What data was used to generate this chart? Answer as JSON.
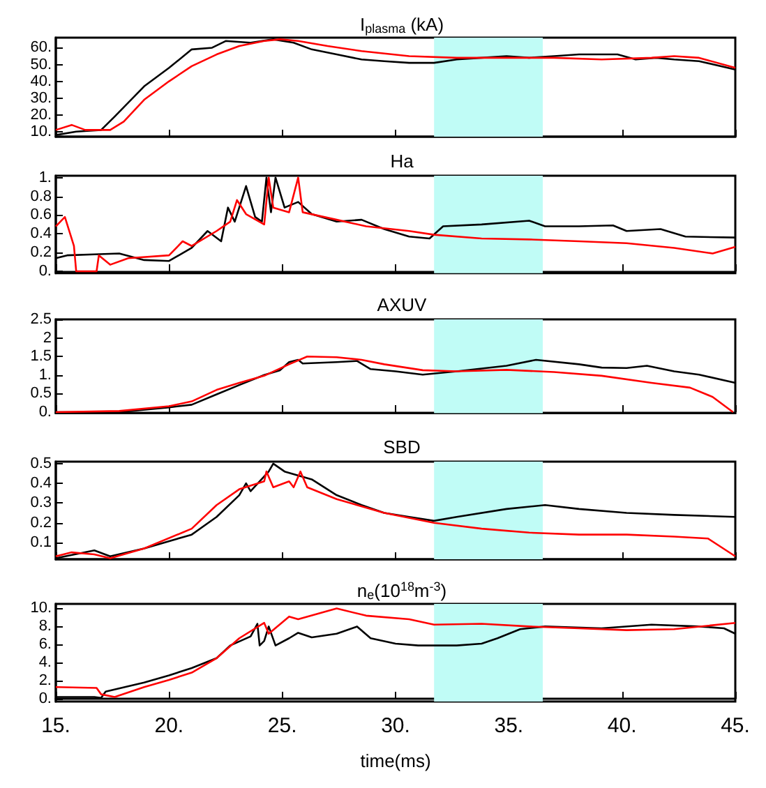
{
  "chart_data": [
    {
      "type": "line",
      "title": "I$_{plasma}$ (kA)",
      "marker": "none",
      "tick_labels": "y",
      "xlim": [
        15,
        45
      ],
      "xticks": [
        15,
        20,
        25,
        30,
        35,
        40,
        45
      ],
      "ylim": [
        7,
        66
      ],
      "yticks": [
        {
          "value": 10,
          "label": "10."
        },
        {
          "value": 20,
          "label": "20."
        },
        {
          "value": 30,
          "label": "30."
        },
        {
          "value": 40,
          "label": "40."
        },
        {
          "value": 50,
          "label": "50."
        },
        {
          "value": 60,
          "label": "60."
        }
      ],
      "bands": [
        {
          "axis": "x",
          "from": 31.7,
          "to": 36.5,
          "color": "#c0fcf6"
        }
      ],
      "series": [
        {
          "color": "#000000",
          "x": [
            15,
            15.9,
            17,
            17.6,
            18.9,
            20,
            21,
            21.9,
            22.5,
            23.6,
            24.6,
            25.5,
            26.3,
            27.4,
            28.5,
            29.5,
            30.6,
            31.7,
            32.7,
            33.8,
            34.9,
            35.9,
            37,
            38.1,
            39.1,
            39.8,
            40.6,
            41.5,
            42.3,
            43.4,
            45
          ],
          "values": [
            8,
            10,
            11,
            19,
            37,
            48,
            59,
            60,
            64,
            63,
            65,
            63,
            59,
            56,
            53,
            52,
            51,
            51,
            53,
            54,
            55,
            54,
            55,
            56,
            56,
            56,
            53,
            54,
            53,
            52,
            47
          ]
        },
        {
          "color": "#ff0000",
          "x": [
            15,
            15.7,
            16.3,
            17.4,
            18,
            18.9,
            20,
            21,
            22.1,
            23.1,
            24.2,
            24.9,
            25.7,
            27,
            28.5,
            30.6,
            32.7,
            34.9,
            37,
            39.1,
            41.3,
            42.3,
            43.4,
            45
          ],
          "values": [
            11,
            14,
            11,
            11,
            16,
            29,
            40,
            49,
            56,
            61,
            64,
            65,
            64,
            61,
            58,
            55,
            54,
            54,
            54,
            53,
            54,
            55,
            54,
            48
          ]
        }
      ]
    },
    {
      "type": "line",
      "title": "Ha",
      "marker": "none",
      "tick_labels": "y",
      "xlim": [
        15,
        45
      ],
      "xticks": [
        15,
        20,
        25,
        30,
        35,
        40,
        45
      ],
      "ylim": [
        -0.02,
        1.02
      ],
      "yticks": [
        {
          "value": 0,
          "label": "0."
        },
        0.2,
        0.4,
        0.6,
        0.8,
        {
          "value": 1,
          "label": "1."
        }
      ],
      "bands": [
        {
          "axis": "x",
          "from": 31.7,
          "to": 36.5,
          "color": "#c0fcf6"
        }
      ],
      "series": [
        {
          "color": "#000000",
          "x": [
            15,
            15.5,
            16.7,
            17.8,
            18.9,
            20,
            21,
            21.7,
            22.3,
            22.6,
            22.9,
            23.4,
            23.8,
            24.1,
            24.3,
            24.5,
            24.7,
            25.1,
            25.7,
            26.3,
            27.4,
            28.5,
            29.5,
            30.6,
            31.5,
            32.1,
            33.8,
            35.9,
            36.6,
            38.1,
            39.6,
            40.2,
            41.7,
            42.8,
            45
          ],
          "values": [
            0.14,
            0.17,
            0.18,
            0.19,
            0.12,
            0.11,
            0.25,
            0.43,
            0.32,
            0.68,
            0.53,
            0.91,
            0.58,
            0.53,
            1.0,
            0.63,
            1.0,
            0.68,
            0.74,
            0.61,
            0.53,
            0.55,
            0.45,
            0.37,
            0.35,
            0.48,
            0.5,
            0.54,
            0.48,
            0.48,
            0.49,
            0.43,
            0.45,
            0.37,
            0.36
          ]
        },
        {
          "color": "#ff0000",
          "x": [
            15,
            15.4,
            15.8,
            15.9,
            16.8,
            16.9,
            17.4,
            18.2,
            20,
            20.6,
            21,
            22.1,
            22.7,
            23,
            23.4,
            24.2,
            24.4,
            24.6,
            25.3,
            25.7,
            25.9,
            27.4,
            28.7,
            30.6,
            31.7,
            33.8,
            35.9,
            38.1,
            40.2,
            42.3,
            44,
            45
          ],
          "values": [
            0.48,
            0.58,
            0.27,
            0,
            0,
            0.17,
            0.07,
            0.14,
            0.17,
            0.32,
            0.27,
            0.43,
            0.53,
            0.76,
            0.61,
            0.5,
            1.0,
            0.68,
            0.63,
            1.0,
            0.63,
            0.55,
            0.48,
            0.43,
            0.39,
            0.35,
            0.34,
            0.32,
            0.3,
            0.25,
            0.19,
            0.26
          ]
        }
      ]
    },
    {
      "type": "line",
      "title": "AXUV",
      "marker": "none",
      "tick_labels": "y",
      "xlim": [
        15,
        45
      ],
      "xticks": [
        15,
        20,
        25,
        30,
        35,
        40,
        45
      ],
      "ylim": [
        -0.03,
        2.5
      ],
      "yticks": [
        {
          "value": 0,
          "label": "0."
        },
        0.5,
        {
          "value": 1,
          "label": "1."
        },
        1.5,
        2,
        2.5
      ],
      "bands": [
        {
          "axis": "x",
          "from": 31.7,
          "to": 36.5,
          "color": "#c0fcf6"
        }
      ],
      "series": [
        {
          "color": "#000000",
          "x": [
            15,
            17.8,
            20,
            21,
            22.1,
            23.1,
            24.2,
            24.9,
            25.3,
            25.7,
            25.9,
            27.4,
            28.3,
            28.9,
            30,
            31.2,
            32.7,
            34.9,
            36.2,
            38.1,
            39.1,
            40.2,
            41.1,
            42.3,
            43.4,
            45
          ],
          "values": [
            0,
            0,
            0.13,
            0.2,
            0.48,
            0.73,
            1.0,
            1.13,
            1.35,
            1.41,
            1.31,
            1.35,
            1.38,
            1.16,
            1.1,
            1.01,
            1.1,
            1.25,
            1.41,
            1.29,
            1.2,
            1.19,
            1.25,
            1.1,
            1.01,
            0.79
          ]
        },
        {
          "color": "#ff0000",
          "x": [
            15,
            17.8,
            20,
            21,
            22.1,
            23.1,
            24.2,
            25.3,
            26.1,
            27.4,
            28.5,
            29.5,
            31.2,
            32.7,
            34.9,
            37,
            39.1,
            41.3,
            43,
            44,
            44.9
          ],
          "values": [
            0,
            0.03,
            0.16,
            0.29,
            0.6,
            0.79,
            0.98,
            1.29,
            1.5,
            1.48,
            1.41,
            1.29,
            1.13,
            1.1,
            1.14,
            1.08,
            0.98,
            0.79,
            0.66,
            0.41,
            0
          ]
        }
      ]
    },
    {
      "type": "line",
      "title": "SBD",
      "marker": "none",
      "tick_labels": "y",
      "xlim": [
        15,
        45
      ],
      "xticks": [
        15,
        20,
        25,
        30,
        35,
        40,
        45
      ],
      "ylim": [
        0.015,
        0.51
      ],
      "yticks": [
        0.1,
        0.2,
        0.3,
        0.4,
        0.5
      ],
      "bands": [
        {
          "axis": "x",
          "from": 31.7,
          "to": 36.5,
          "color": "#c0fcf6"
        }
      ],
      "series": [
        {
          "color": "#000000",
          "x": [
            15,
            16.7,
            17.4,
            18.9,
            21,
            22.1,
            23.1,
            23.4,
            23.6,
            24.4,
            24.6,
            25.1,
            26.3,
            27.4,
            28.5,
            29.5,
            30.6,
            31.7,
            32.7,
            34.9,
            36.6,
            38.1,
            40.2,
            42.3,
            45
          ],
          "values": [
            0.02,
            0.06,
            0.03,
            0.07,
            0.14,
            0.23,
            0.34,
            0.4,
            0.36,
            0.46,
            0.5,
            0.46,
            0.42,
            0.34,
            0.29,
            0.25,
            0.23,
            0.21,
            0.23,
            0.27,
            0.29,
            0.27,
            0.25,
            0.24,
            0.23
          ]
        },
        {
          "color": "#ff0000",
          "x": [
            15,
            15.7,
            16.7,
            17.4,
            18.9,
            21,
            22.1,
            23.1,
            24.2,
            24.3,
            24.6,
            25.3,
            25.5,
            25.8,
            26.1,
            27.4,
            29.5,
            31.7,
            33.8,
            35.9,
            38.1,
            40.2,
            42.3,
            43.8,
            45
          ],
          "values": [
            0.03,
            0.05,
            0.04,
            0.02,
            0.07,
            0.17,
            0.29,
            0.37,
            0.41,
            0.46,
            0.38,
            0.41,
            0.38,
            0.46,
            0.38,
            0.32,
            0.25,
            0.2,
            0.17,
            0.15,
            0.14,
            0.14,
            0.13,
            0.12,
            0.03
          ]
        }
      ]
    },
    {
      "type": "line",
      "title": "n$_{e}$(10$^{18}$m$^{-3}$)",
      "xlabel": "time(ms)",
      "marker": "none",
      "xlim": [
        15,
        45
      ],
      "xticks": [
        {
          "value": 15,
          "label": "15."
        },
        {
          "value": 20,
          "label": "20."
        },
        {
          "value": 25,
          "label": "25."
        },
        {
          "value": 30,
          "label": "30."
        },
        {
          "value": 35,
          "label": "35."
        },
        {
          "value": 40,
          "label": "40."
        },
        {
          "value": 45,
          "label": "45."
        }
      ],
      "ylim": [
        -0.3,
        10.5
      ],
      "yticks": [
        {
          "value": 0,
          "label": "0."
        },
        {
          "value": 2,
          "label": "2."
        },
        {
          "value": 4,
          "label": "4."
        },
        {
          "value": 6,
          "label": "6."
        },
        {
          "value": 8,
          "label": "8."
        },
        {
          "value": 10,
          "label": "10."
        }
      ],
      "bands": [
        {
          "axis": "x",
          "from": 31.7,
          "to": 36.5,
          "color": "#c0fcf6"
        }
      ],
      "series": [
        {
          "color": "#000000",
          "x": [
            15,
            16.7,
            17,
            17.2,
            18.9,
            20,
            21,
            22.1,
            22.7,
            23.6,
            23.9,
            24,
            24.2,
            24.4,
            24.7,
            25.3,
            25.7,
            26.3,
            27.4,
            28.3,
            28.9,
            30,
            31,
            32.7,
            33.8,
            34.5,
            35.5,
            36.6,
            39.1,
            41.3,
            43.4,
            44.5,
            45
          ],
          "values": [
            0.2,
            0.2,
            0.1,
            0.8,
            1.8,
            2.6,
            3.4,
            4.5,
            5.9,
            6.9,
            8.3,
            5.9,
            6.4,
            8.0,
            5.9,
            6.7,
            7.3,
            6.8,
            7.2,
            8.0,
            6.7,
            6.1,
            5.9,
            5.9,
            6.1,
            6.7,
            7.7,
            8.0,
            7.8,
            8.2,
            8.0,
            7.8,
            7.2
          ]
        },
        {
          "color": "#ff0000",
          "x": [
            15,
            16.8,
            17,
            17.6,
            18.9,
            20,
            21,
            22.1,
            23.1,
            24.2,
            24.4,
            25.3,
            25.7,
            27.4,
            28.7,
            30.6,
            31.7,
            33.8,
            35.9,
            38.1,
            40.2,
            42.3,
            45
          ],
          "values": [
            1.3,
            1.2,
            0.5,
            0.2,
            1.3,
            2.1,
            2.9,
            4.5,
            6.7,
            8.4,
            7.2,
            9.1,
            8.8,
            10.0,
            9.2,
            8.8,
            8.2,
            8.3,
            8.0,
            7.8,
            7.6,
            7.7,
            8.4
          ]
        }
      ]
    }
  ]
}
